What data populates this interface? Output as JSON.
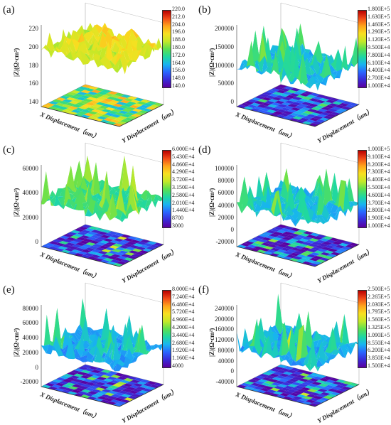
{
  "panels": [
    {
      "label": "(a)",
      "zlabel": "|Z|(Ω·cm²)",
      "xlabel": "X Displacement（um）",
      "ylabel": "Y Displacement（um）",
      "zticks": [
        "220",
        "200",
        "180",
        "160",
        "140"
      ],
      "colorbar": [
        "220.0",
        "212.0",
        "204.0",
        "196.0",
        "188.0",
        "180.0",
        "172.0",
        "164.0",
        "156.0",
        "148.0",
        "140.0"
      ]
    },
    {
      "label": "(b)",
      "zlabel": "|Z|(Ω·cm²)",
      "xlabel": "X Displacement（um）",
      "ylabel": "Y Displacement（um）",
      "zticks": [
        "200000",
        "150000",
        "100000",
        "50000",
        "0"
      ],
      "colorbar": [
        "1.800E+5",
        "1.630E+5",
        "1.460E+5",
        "1.290E+5",
        "1.120E+5",
        "9.500E+4",
        "7.800E+4",
        "6.100E+4",
        "4.400E+4",
        "2.700E+4",
        "1.000E+4"
      ]
    },
    {
      "label": "(c)",
      "zlabel": "|Z|(Ω·cm²)",
      "xlabel": "X Displacement（um）",
      "ylabel": "Y Displacement（um）",
      "zticks": [
        "60000",
        "40000",
        "20000",
        "0"
      ],
      "colorbar": [
        "6.000E+4",
        "5.430E+4",
        "4.860E+4",
        "4.290E+4",
        "3.720E+4",
        "3.150E+4",
        "2.580E+4",
        "2.010E+4",
        "1.440E+4",
        "8700",
        "3000"
      ]
    },
    {
      "label": "(d)",
      "zlabel": "|Z|(Ω·cm²)",
      "xlabel": "X Displacement（um）",
      "ylabel": "Y Displacement（um）",
      "zticks": [
        "100000",
        "80000",
        "60000",
        "40000",
        "20000",
        "0",
        "-20000"
      ],
      "colorbar": [
        "1.000E+5",
        "9.100E+4",
        "8.200E+4",
        "7.300E+4",
        "6.400E+4",
        "5.500E+4",
        "4.600E+4",
        "3.700E+4",
        "2.800E+4",
        "1.900E+4",
        "1.000E+4"
      ]
    },
    {
      "label": "(e)",
      "zlabel": "|Z|(Ω·cm²)",
      "xlabel": "X Displacement（um）",
      "ylabel": "Y Displacement（um）",
      "zticks": [
        "80000",
        "60000",
        "40000",
        "20000",
        "0",
        "-20000"
      ],
      "colorbar": [
        "8.000E+4",
        "7.240E+4",
        "6.480E+4",
        "5.720E+4",
        "4.960E+4",
        "4.200E+4",
        "3.440E+4",
        "2.680E+4",
        "1.920E+4",
        "1.160E+4",
        "4000"
      ]
    },
    {
      "label": "(f)",
      "zlabel": "|Z|(Ω·cm²)",
      "xlabel": "X Displacement（um）",
      "ylabel": "Y Displacement（um）",
      "zticks": [
        "240000",
        "200000",
        "160000",
        "120000",
        "80000",
        "40000",
        "0",
        "-40000"
      ],
      "colorbar": [
        "2.500E+5",
        "2.265E+5",
        "2.030E+5",
        "1.795E+5",
        "1.560E+5",
        "1.325E+5",
        "1.090E+5",
        "8.550E+4",
        "6.200E+4",
        "3.850E+4",
        "1.500E+4"
      ]
    }
  ],
  "chart_data": [
    {
      "type": "heatmap",
      "title": "(a)",
      "zlabel": "|Z|(Ω·cm²)",
      "xlabel": "X Displacement（um）",
      "ylabel": "Y Displacement（um）",
      "zlim": [
        140,
        220
      ],
      "colorbar_range": [
        140.0,
        220.0
      ],
      "colormap": "rainbow"
    },
    {
      "type": "heatmap",
      "title": "(b)",
      "zlabel": "|Z|(Ω·cm²)",
      "xlabel": "X Displacement（um）",
      "ylabel": "Y Displacement（um）",
      "zlim": [
        0,
        200000
      ],
      "colorbar_range": [
        10000,
        180000
      ],
      "colormap": "rainbow"
    },
    {
      "type": "heatmap",
      "title": "(c)",
      "zlabel": "|Z|(Ω·cm²)",
      "xlabel": "X Displacement（um）",
      "ylabel": "Y Displacement（um）",
      "zlim": [
        0,
        60000
      ],
      "colorbar_range": [
        3000,
        60000
      ],
      "colormap": "rainbow"
    },
    {
      "type": "heatmap",
      "title": "(d)",
      "zlabel": "|Z|(Ω·cm²)",
      "xlabel": "X Displacement（um）",
      "ylabel": "Y Displacement（um）",
      "zlim": [
        -20000,
        100000
      ],
      "colorbar_range": [
        10000,
        100000
      ],
      "colormap": "rainbow"
    },
    {
      "type": "heatmap",
      "title": "(e)",
      "zlabel": "|Z|(Ω·cm²)",
      "xlabel": "X Displacement（um）",
      "ylabel": "Y Displacement（um）",
      "zlim": [
        -20000,
        80000
      ],
      "colorbar_range": [
        4000,
        80000
      ],
      "colormap": "rainbow"
    },
    {
      "type": "heatmap",
      "title": "(f)",
      "zlabel": "|Z|(Ω·cm²)",
      "xlabel": "X Displacement（um）",
      "ylabel": "Y Displacement（um）",
      "zlim": [
        -40000,
        240000
      ],
      "colorbar_range": [
        15000,
        250000
      ],
      "colormap": "rainbow"
    }
  ]
}
